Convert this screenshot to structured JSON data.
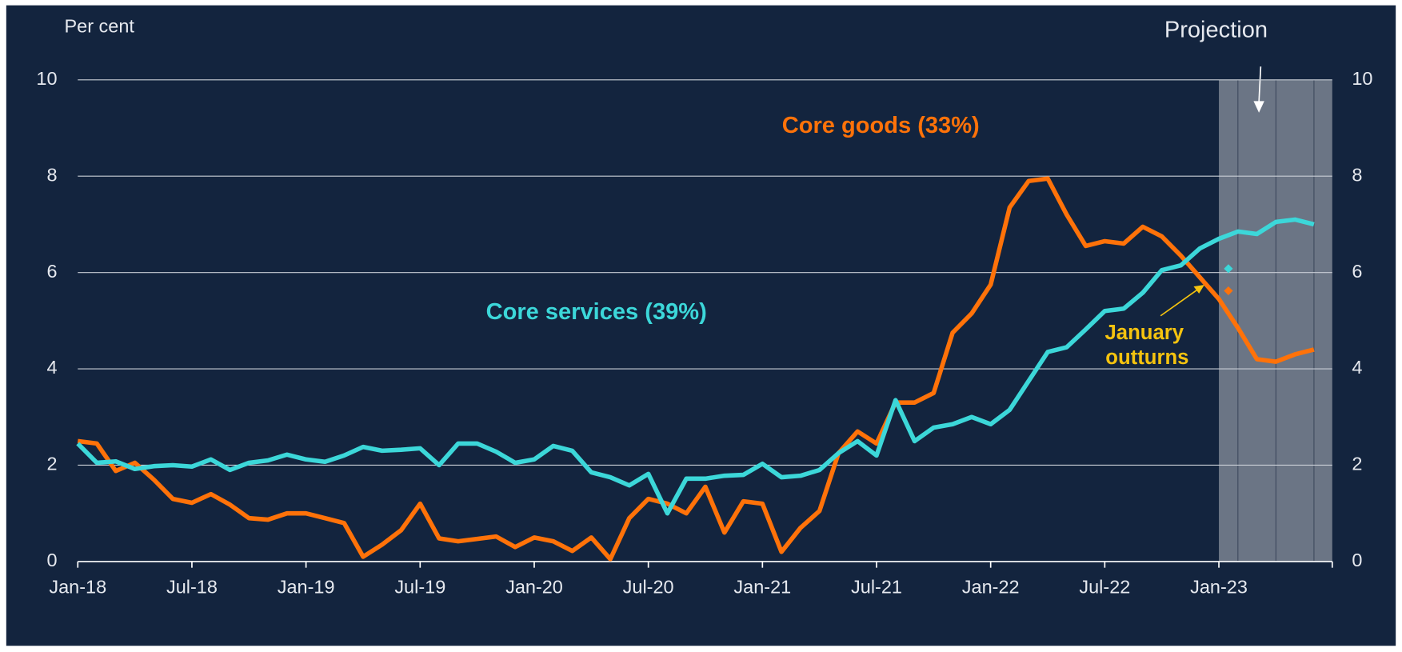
{
  "chart_data": {
    "type": "line",
    "y_axis_label": "Per cent",
    "categories": [
      "Jan-18",
      null,
      null,
      null,
      null,
      null,
      "Jul-18",
      null,
      null,
      null,
      null,
      null,
      "Jan-19",
      null,
      null,
      null,
      null,
      null,
      "Jul-19",
      null,
      null,
      null,
      null,
      null,
      "Jan-20",
      null,
      null,
      null,
      null,
      null,
      "Jul-20",
      null,
      null,
      null,
      null,
      null,
      "Jan-21",
      null,
      null,
      null,
      null,
      null,
      "Jul-21",
      null,
      null,
      null,
      null,
      null,
      "Jan-22",
      null,
      null,
      null,
      null,
      null,
      "Jul-22",
      null,
      null,
      null,
      null,
      null,
      "Jan-23",
      null,
      null,
      null,
      null,
      null
    ],
    "series": [
      {
        "name": "Core goods (33%)",
        "color": "#ff7209",
        "values": [
          2.5,
          2.45,
          1.88,
          2.05,
          1.7,
          1.3,
          1.22,
          1.4,
          1.18,
          0.9,
          0.87,
          1.0,
          1.0,
          0.9,
          0.8,
          0.1,
          0.35,
          0.65,
          1.2,
          0.48,
          0.42,
          0.47,
          0.52,
          0.3,
          0.5,
          0.42,
          0.22,
          0.5,
          0.05,
          0.9,
          1.3,
          1.2,
          1.0,
          1.55,
          0.6,
          1.25,
          1.2,
          0.2,
          0.7,
          1.05,
          2.25,
          2.7,
          2.45,
          3.3,
          3.3,
          3.5,
          4.75,
          5.15,
          5.75,
          7.35,
          7.9,
          7.95,
          7.2,
          6.55,
          6.65,
          6.6,
          6.95,
          6.75,
          6.35,
          5.9,
          5.45,
          4.85,
          4.2,
          4.15,
          4.3,
          4.4
        ]
      },
      {
        "name": "Core services (39%)",
        "color": "#3cd7d9",
        "values": [
          2.45,
          2.05,
          2.08,
          1.92,
          1.98,
          2.0,
          1.97,
          2.12,
          1.9,
          2.05,
          2.1,
          2.22,
          2.12,
          2.07,
          2.2,
          2.38,
          2.3,
          2.32,
          2.35,
          2.0,
          2.45,
          2.45,
          2.28,
          2.05,
          2.12,
          2.4,
          2.3,
          1.85,
          1.75,
          1.58,
          1.82,
          1.0,
          1.72,
          1.72,
          1.78,
          1.8,
          2.03,
          1.75,
          1.78,
          1.9,
          2.25,
          2.5,
          2.2,
          3.35,
          2.5,
          2.78,
          2.85,
          3.0,
          2.85,
          3.15,
          3.75,
          4.35,
          4.45,
          4.82,
          5.2,
          5.25,
          5.58,
          6.05,
          6.15,
          6.5,
          6.7,
          6.85,
          6.8,
          7.05,
          7.1,
          7.0
        ]
      }
    ],
    "outturns": {
      "label": "January outturns",
      "values": [
        5.62,
        6.08
      ],
      "colors": [
        "#ff7209",
        "#3cd7d9"
      ]
    },
    "projection_label": "Projection",
    "ylim": [
      0,
      10
    ],
    "yticks": [
      0,
      2,
      4,
      6,
      8,
      10
    ],
    "y2lim": [
      0,
      10
    ],
    "y2ticks": [
      0,
      2,
      4,
      6,
      8,
      10
    ],
    "grid": true
  }
}
